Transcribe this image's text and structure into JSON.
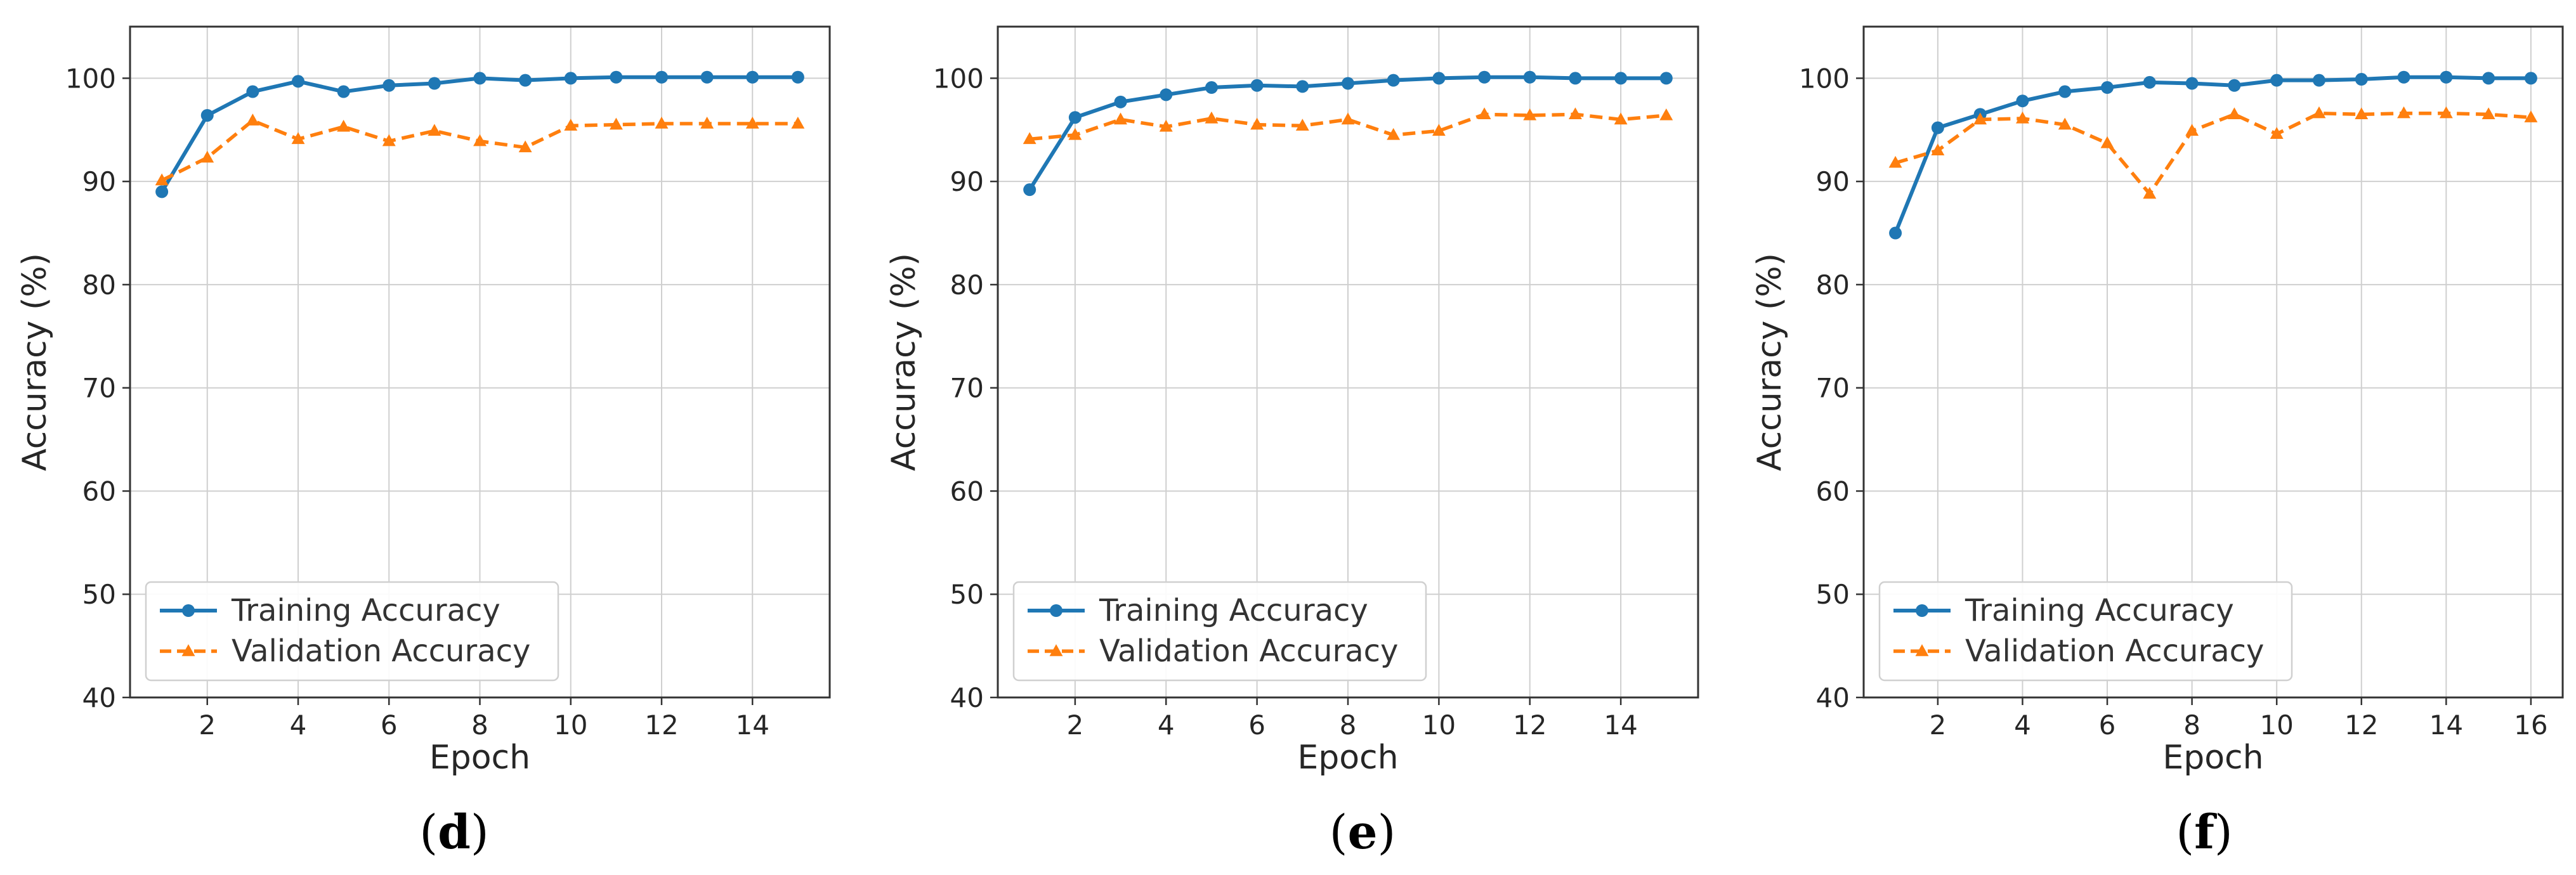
{
  "colors": {
    "training": "#1f77b4",
    "validation": "#ff7f0e",
    "grid": "#cfcfcf",
    "axis": "#333333"
  },
  "chart_data": [
    {
      "type": "line",
      "panel_label": "d",
      "xlabel": "Epoch",
      "ylabel": "Accuracy (%)",
      "xlim": [
        0.3,
        15.7
      ],
      "ylim": [
        40,
        105
      ],
      "xticks": [
        2,
        4,
        6,
        8,
        10,
        12,
        14
      ],
      "xtick_labels": [
        "2",
        "4",
        "6",
        "8",
        "10",
        "12",
        "14"
      ],
      "yticks": [
        40,
        50,
        60,
        70,
        80,
        90,
        100
      ],
      "ytick_labels": [
        "40",
        "50",
        "60",
        "70",
        "80",
        "90",
        "100"
      ],
      "grid": true,
      "legend_position": "lower-left",
      "x": [
        1,
        2,
        3,
        4,
        5,
        6,
        7,
        8,
        9,
        10,
        11,
        12,
        13,
        14,
        15
      ],
      "series": [
        {
          "name": "Training Accuracy",
          "style": "solid-circle",
          "values": [
            89.0,
            96.4,
            98.7,
            99.7,
            98.7,
            99.3,
            99.5,
            100.0,
            99.8,
            100.0,
            100.1,
            100.1,
            100.1,
            100.1,
            100.1
          ]
        },
        {
          "name": "Validation Accuracy",
          "style": "dashed-triangle",
          "values": [
            90.1,
            92.3,
            95.9,
            94.1,
            95.3,
            93.9,
            94.9,
            93.9,
            93.3,
            95.4,
            95.5,
            95.6,
            95.6,
            95.6,
            95.6
          ]
        }
      ]
    },
    {
      "type": "line",
      "panel_label": "e",
      "xlabel": "Epoch",
      "ylabel": "Accuracy (%)",
      "xlim": [
        0.3,
        15.7
      ],
      "ylim": [
        40,
        105
      ],
      "xticks": [
        2,
        4,
        6,
        8,
        10,
        12,
        14
      ],
      "xtick_labels": [
        "2",
        "4",
        "6",
        "8",
        "10",
        "12",
        "14"
      ],
      "yticks": [
        40,
        50,
        60,
        70,
        80,
        90,
        100
      ],
      "ytick_labels": [
        "40",
        "50",
        "60",
        "70",
        "80",
        "90",
        "100"
      ],
      "grid": true,
      "legend_position": "lower-left",
      "x": [
        1,
        2,
        3,
        4,
        5,
        6,
        7,
        8,
        9,
        10,
        11,
        12,
        13,
        14,
        15
      ],
      "series": [
        {
          "name": "Training Accuracy",
          "style": "solid-circle",
          "values": [
            89.2,
            96.2,
            97.7,
            98.4,
            99.1,
            99.3,
            99.2,
            99.5,
            99.8,
            100.0,
            100.1,
            100.1,
            100.0,
            100.0,
            100.0
          ]
        },
        {
          "name": "Validation Accuracy",
          "style": "dashed-triangle",
          "values": [
            94.1,
            94.5,
            96.0,
            95.3,
            96.1,
            95.5,
            95.4,
            96.0,
            94.5,
            94.9,
            96.5,
            96.4,
            96.5,
            96.0,
            96.4
          ]
        }
      ]
    },
    {
      "type": "line",
      "panel_label": "f",
      "xlabel": "Epoch",
      "ylabel": "Accuracy (%)",
      "xlim": [
        0.25,
        16.75
      ],
      "ylim": [
        40,
        105
      ],
      "xticks": [
        2,
        4,
        6,
        8,
        10,
        12,
        14,
        16
      ],
      "xtick_labels": [
        "2",
        "4",
        "6",
        "8",
        "10",
        "12",
        "14",
        "16"
      ],
      "yticks": [
        40,
        50,
        60,
        70,
        80,
        90,
        100
      ],
      "ytick_labels": [
        "40",
        "50",
        "60",
        "70",
        "80",
        "90",
        "100"
      ],
      "grid": true,
      "legend_position": "lower-left",
      "x": [
        1,
        2,
        3,
        4,
        5,
        6,
        7,
        8,
        9,
        10,
        11,
        12,
        13,
        14,
        15,
        16
      ],
      "series": [
        {
          "name": "Training Accuracy",
          "style": "solid-circle",
          "values": [
            85.0,
            95.2,
            96.5,
            97.8,
            98.7,
            99.1,
            99.6,
            99.5,
            99.3,
            99.8,
            99.8,
            99.9,
            100.1,
            100.1,
            100.0,
            100.0
          ]
        },
        {
          "name": "Validation Accuracy",
          "style": "dashed-triangle",
          "values": [
            91.8,
            93.0,
            96.0,
            96.1,
            95.5,
            93.7,
            88.8,
            94.9,
            96.5,
            94.6,
            96.6,
            96.5,
            96.6,
            96.6,
            96.5,
            96.2
          ]
        }
      ]
    }
  ]
}
